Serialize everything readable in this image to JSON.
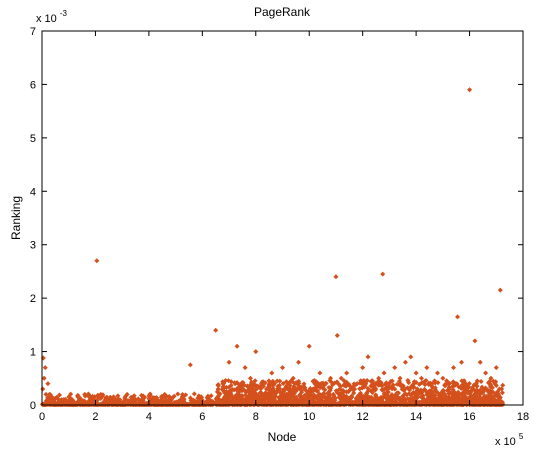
{
  "chart_data": {
    "type": "scatter",
    "title": "PageRank",
    "xlabel": "Node",
    "ylabel": "Ranking",
    "xlim": [
      0,
      1800000
    ],
    "ylim": [
      0,
      0.007
    ],
    "x_tick_values": [
      0,
      200000,
      400000,
      600000,
      800000,
      1000000,
      1200000,
      1400000,
      1600000,
      1800000
    ],
    "x_tick_labels": [
      "0",
      "2",
      "4",
      "6",
      "8",
      "10",
      "12",
      "14",
      "16",
      "18"
    ],
    "y_tick_values": [
      0,
      0.001,
      0.002,
      0.003,
      0.004,
      0.005,
      0.006,
      0.007
    ],
    "y_tick_labels": [
      "0",
      "1",
      "2",
      "3",
      "4",
      "5",
      "6",
      "7"
    ],
    "x_multiplier": "x 10",
    "x_multiplier_exp": "5",
    "y_multiplier": "x 10",
    "y_multiplier_exp": "-3",
    "grid": false,
    "marker": "diamond",
    "marker_color": "#d4501c",
    "series": [
      {
        "x": [
          3000,
          5000,
          8000,
          12000,
          15000,
          22000,
          30000,
          45000,
          60000,
          80000,
          100000,
          120000,
          140000,
          160000,
          180000,
          205000,
          210000,
          220000,
          260000,
          300000,
          340000,
          380000,
          420000,
          470000,
          520000,
          555000,
          600000,
          640000,
          650000,
          660000,
          680000,
          700000,
          730000,
          750000,
          760000,
          780000,
          800000,
          820000,
          840000,
          860000,
          880000,
          900000,
          920000,
          940000,
          960000,
          980000,
          1000000,
          1020000,
          1040000,
          1060000,
          1080000,
          1100000,
          1105000,
          1120000,
          1140000,
          1160000,
          1180000,
          1200000,
          1220000,
          1240000,
          1260000,
          1275000,
          1280000,
          1300000,
          1320000,
          1340000,
          1360000,
          1380000,
          1400000,
          1420000,
          1440000,
          1460000,
          1480000,
          1500000,
          1520000,
          1540000,
          1555000,
          1570000,
          1585000,
          1600000,
          1620000,
          1640000,
          1660000,
          1680000,
          1700000,
          1715000,
          1720000
        ],
        "y": [
          0.0003,
          0.00088,
          0.0005,
          0.0007,
          0.0002,
          0.0004,
          0.00015,
          0.0001,
          5e-05,
          0.0001,
          0.00015,
          5e-05,
          0.0001,
          0.0002,
          8e-05,
          0.0027,
          0.00015,
          0.0002,
          5e-05,
          4e-05,
          3e-05,
          5e-05,
          4e-05,
          6e-05,
          5e-05,
          0.00075,
          3e-05,
          6e-05,
          0.0014,
          0.0003,
          0.0004,
          0.0008,
          0.0011,
          0.0003,
          0.0007,
          0.0005,
          0.001,
          0.00035,
          0.0003,
          0.0006,
          0.00045,
          0.0007,
          0.0003,
          0.0005,
          0.0008,
          0.00035,
          0.0011,
          0.0003,
          0.0006,
          0.0004,
          0.0005,
          0.0024,
          0.0013,
          0.0005,
          0.0006,
          0.0003,
          0.0004,
          0.0007,
          0.0009,
          0.0004,
          0.0005,
          0.00245,
          0.0006,
          0.0004,
          0.0007,
          0.0005,
          0.0008,
          0.0009,
          0.0006,
          0.0005,
          0.0007,
          0.0004,
          0.0006,
          0.0005,
          0.0004,
          0.0007,
          0.00165,
          0.0008,
          0.0003,
          0.0059,
          0.0012,
          0.0008,
          0.0006,
          0.0005,
          0.0007,
          0.00215,
          0.0003
        ]
      }
    ]
  }
}
